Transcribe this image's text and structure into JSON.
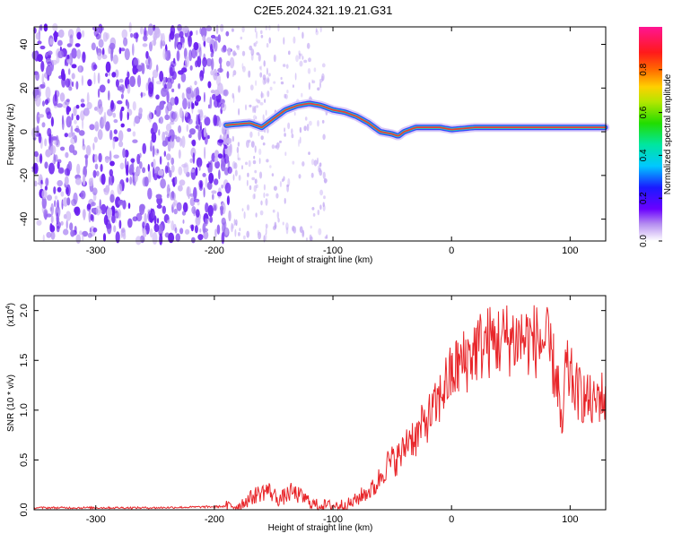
{
  "title": "C2E5.2024.321.19.21.G31",
  "colors": {
    "spectrogram_noise": "#7b2cf0",
    "snr_line": "#e8262a",
    "axis": "#000000"
  },
  "chart_data": [
    {
      "type": "heatmap",
      "title": "C2E5.2024.321.19.21.G31",
      "xlabel": "Height of straight line (km)",
      "ylabel": "Frequency (Hz)",
      "xlim": [
        -352,
        130
      ],
      "ylim": [
        -50,
        48
      ],
      "xticks": [
        -300,
        -200,
        -100,
        0,
        100
      ],
      "yticks": [
        -40,
        -20,
        0,
        20,
        40
      ],
      "colorbar": {
        "label": "Normalized spectral amplitude",
        "range": [
          0,
          1
        ],
        "ticks": [
          "0.0",
          "0.2",
          "0.4",
          "0.6",
          "0.8"
        ],
        "colormap": "white-purple-blue-cyan-green-yellow-red-magenta"
      },
      "ridge": {
        "description_units": "frequency (Hz) vs height (km)",
        "x": [
          -190,
          -170,
          -160,
          -150,
          -140,
          -130,
          -120,
          -110,
          -100,
          -90,
          -80,
          -70,
          -60,
          -50,
          -45,
          -40,
          -30,
          -20,
          -10,
          0,
          20,
          40,
          60,
          80,
          100,
          130
        ],
        "y": [
          3,
          4,
          2,
          6,
          10,
          12,
          13,
          12,
          10,
          9,
          7,
          4,
          0,
          -1,
          -2,
          0,
          2,
          2,
          2,
          1,
          2,
          2,
          2,
          2,
          2,
          2
        ]
      },
      "noise_region": [
        -352,
        -185
      ]
    },
    {
      "type": "line",
      "xlabel": "Height of straight line (km)",
      "ylabel": "SNR (10 * v/v)",
      "yscale_label": "(x10",
      "yscale_exp": "4",
      "yscale_close": ")",
      "xlim": [
        -352,
        130
      ],
      "ylim": [
        0,
        2.15
      ],
      "xticks": [
        -300,
        -200,
        -100,
        0,
        100
      ],
      "yticks": [
        "0.0",
        "0.5",
        "1.0",
        "1.5",
        "2.0"
      ],
      "ytick_values": [
        0,
        0.5,
        1.0,
        1.5,
        2.0
      ],
      "series": [
        {
          "x": [
            -352,
            -300,
            -250,
            -200,
            -180,
            -165,
            -155,
            -145,
            -135,
            -125,
            -115,
            -100,
            -85,
            -75,
            -65,
            -55,
            -48,
            -42,
            -36,
            -30,
            -24,
            -18,
            -12,
            -6,
            0,
            6,
            12,
            20,
            30,
            40,
            50,
            60,
            70,
            80,
            86,
            90,
            93,
            96,
            100,
            105,
            110,
            115,
            120,
            125,
            130
          ],
          "values": [
            0.02,
            0.02,
            0.02,
            0.03,
            0.04,
            0.15,
            0.2,
            0.1,
            0.18,
            0.12,
            0.05,
            0.04,
            0.06,
            0.15,
            0.22,
            0.45,
            0.5,
            0.55,
            0.75,
            0.72,
            0.85,
            0.95,
            1.05,
            1.25,
            1.35,
            1.45,
            1.5,
            1.62,
            1.68,
            1.7,
            1.72,
            1.72,
            1.7,
            1.68,
            1.45,
            1.25,
            0.7,
            1.4,
            1.35,
            1.2,
            1.15,
            1.1,
            1.05,
            1.15,
            1.1
          ]
        }
      ]
    }
  ]
}
